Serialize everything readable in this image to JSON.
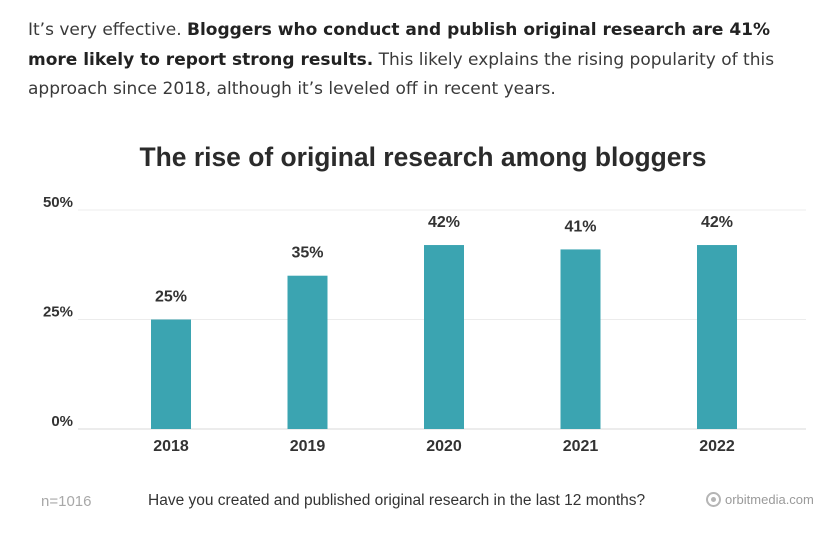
{
  "intro": {
    "text_before": "It’s very effective. ",
    "text_bold": "Bloggers who conduct and publish original research are 41% more likely to report strong results.",
    "text_after": " This likely explains the rising popularity of this approach since 2018, although it’s leveled off in recent years."
  },
  "chart_data": {
    "type": "bar",
    "title": "The rise of original research among bloggers",
    "categories": [
      "2018",
      "2019",
      "2020",
      "2021",
      "2022"
    ],
    "values": [
      25,
      35,
      42,
      41,
      42
    ],
    "value_labels": [
      "25%",
      "35%",
      "42%",
      "41%",
      "42%"
    ],
    "y_ticks": [
      {
        "value": 0,
        "label": "0%"
      },
      {
        "value": 25,
        "label": "25%"
      },
      {
        "value": 50,
        "label": "50%"
      }
    ],
    "ylim": [
      0,
      50
    ],
    "grid": true,
    "bar_color": "#3ba4b1"
  },
  "footer": {
    "sample": "n=1016",
    "question": "Have you created and published original research in the last 12 months?",
    "brand": "orbitmedia.com"
  }
}
